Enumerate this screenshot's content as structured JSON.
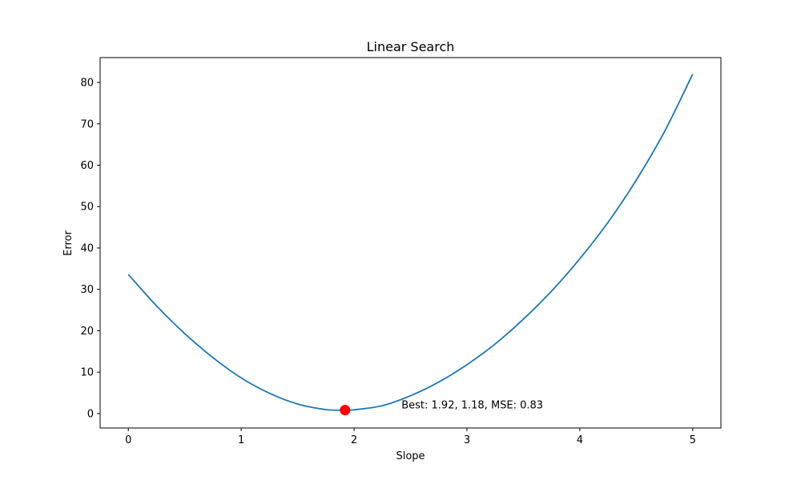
{
  "chart_data": {
    "type": "line",
    "title": "Linear Search",
    "xlabel": "Slope",
    "ylabel": "Error",
    "xlim": [
      -0.25,
      5.25
    ],
    "ylim": [
      -3.5,
      86
    ],
    "xticks": [
      0,
      1,
      2,
      3,
      4,
      5
    ],
    "yticks": [
      0,
      10,
      20,
      30,
      40,
      50,
      60,
      70,
      80
    ],
    "grid": false,
    "colors": {
      "line": "#1f77b4",
      "marker": "#ff0000",
      "axes": "#000000"
    },
    "series": [
      {
        "x": [
          0,
          0.25,
          0.5,
          0.75,
          1,
          1.25,
          1.5,
          1.75,
          1.92,
          2,
          2.25,
          2.5,
          2.75,
          3,
          3.25,
          3.5,
          3.75,
          4,
          4.25,
          4.5,
          4.75,
          5
        ],
        "y": [
          33.6,
          26.0,
          19.3,
          13.5,
          8.6,
          4.9,
          2.3,
          0.95,
          0.83,
          0.9,
          1.9,
          4.3,
          7.6,
          11.8,
          16.8,
          22.8,
          29.6,
          37.4,
          46.2,
          56.4,
          68.1,
          82.0
        ]
      }
    ],
    "best_point": {
      "x": 1.92,
      "y": 0.83
    },
    "annotation": {
      "text": "Best: 1.92, 1.18, MSE: 0.83",
      "x": 2.42,
      "y": 0.83
    }
  }
}
